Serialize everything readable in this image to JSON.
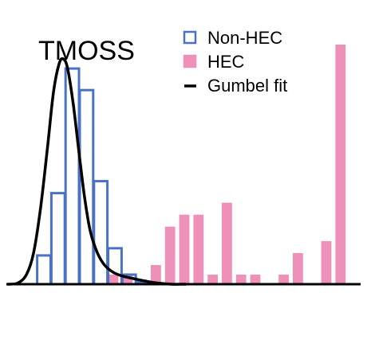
{
  "chart_data": {
    "type": "bar",
    "title": "TMOSS",
    "xlabel": "",
    "ylabel": "",
    "ylim": [
      0,
      1.0
    ],
    "grid": false,
    "legend_position": "top-right",
    "bins": 24,
    "series": [
      {
        "name": "Non-HEC",
        "style": "outline",
        "color": "#4a72c4",
        "values": [
          0,
          0,
          0.12,
          0.38,
          0.9,
          0.81,
          0.43,
          0.15,
          0.04,
          0.01,
          0,
          0,
          0,
          0,
          0,
          0,
          0,
          0,
          0,
          0,
          0,
          0,
          0,
          0
        ]
      },
      {
        "name": "HEC",
        "style": "filled",
        "color": "#ee90b8",
        "values": [
          0,
          0,
          0,
          0,
          0,
          0,
          0,
          0.04,
          0.04,
          0.02,
          0.08,
          0.24,
          0.29,
          0.29,
          0.04,
          0.34,
          0.04,
          0.04,
          0,
          0.04,
          0.13,
          0,
          0.18,
          1.0
        ]
      },
      {
        "name": "Gumbel fit",
        "style": "line",
        "color": "#000000",
        "x": [
          0.0,
          0.7,
          1.3,
          1.8,
          2.3,
          2.8,
          3.2,
          3.6,
          3.9,
          4.2,
          4.6,
          5.0,
          5.4,
          5.8,
          6.3,
          6.8,
          7.4,
          8.0,
          8.7,
          9.5,
          10.5,
          11.5,
          12.5
        ],
        "values": [
          0.0,
          0.005,
          0.04,
          0.13,
          0.32,
          0.58,
          0.8,
          0.92,
          0.94,
          0.9,
          0.75,
          0.55,
          0.36,
          0.22,
          0.13,
          0.08,
          0.05,
          0.035,
          0.025,
          0.015,
          0.005,
          0.0,
          0.0
        ]
      }
    ]
  }
}
